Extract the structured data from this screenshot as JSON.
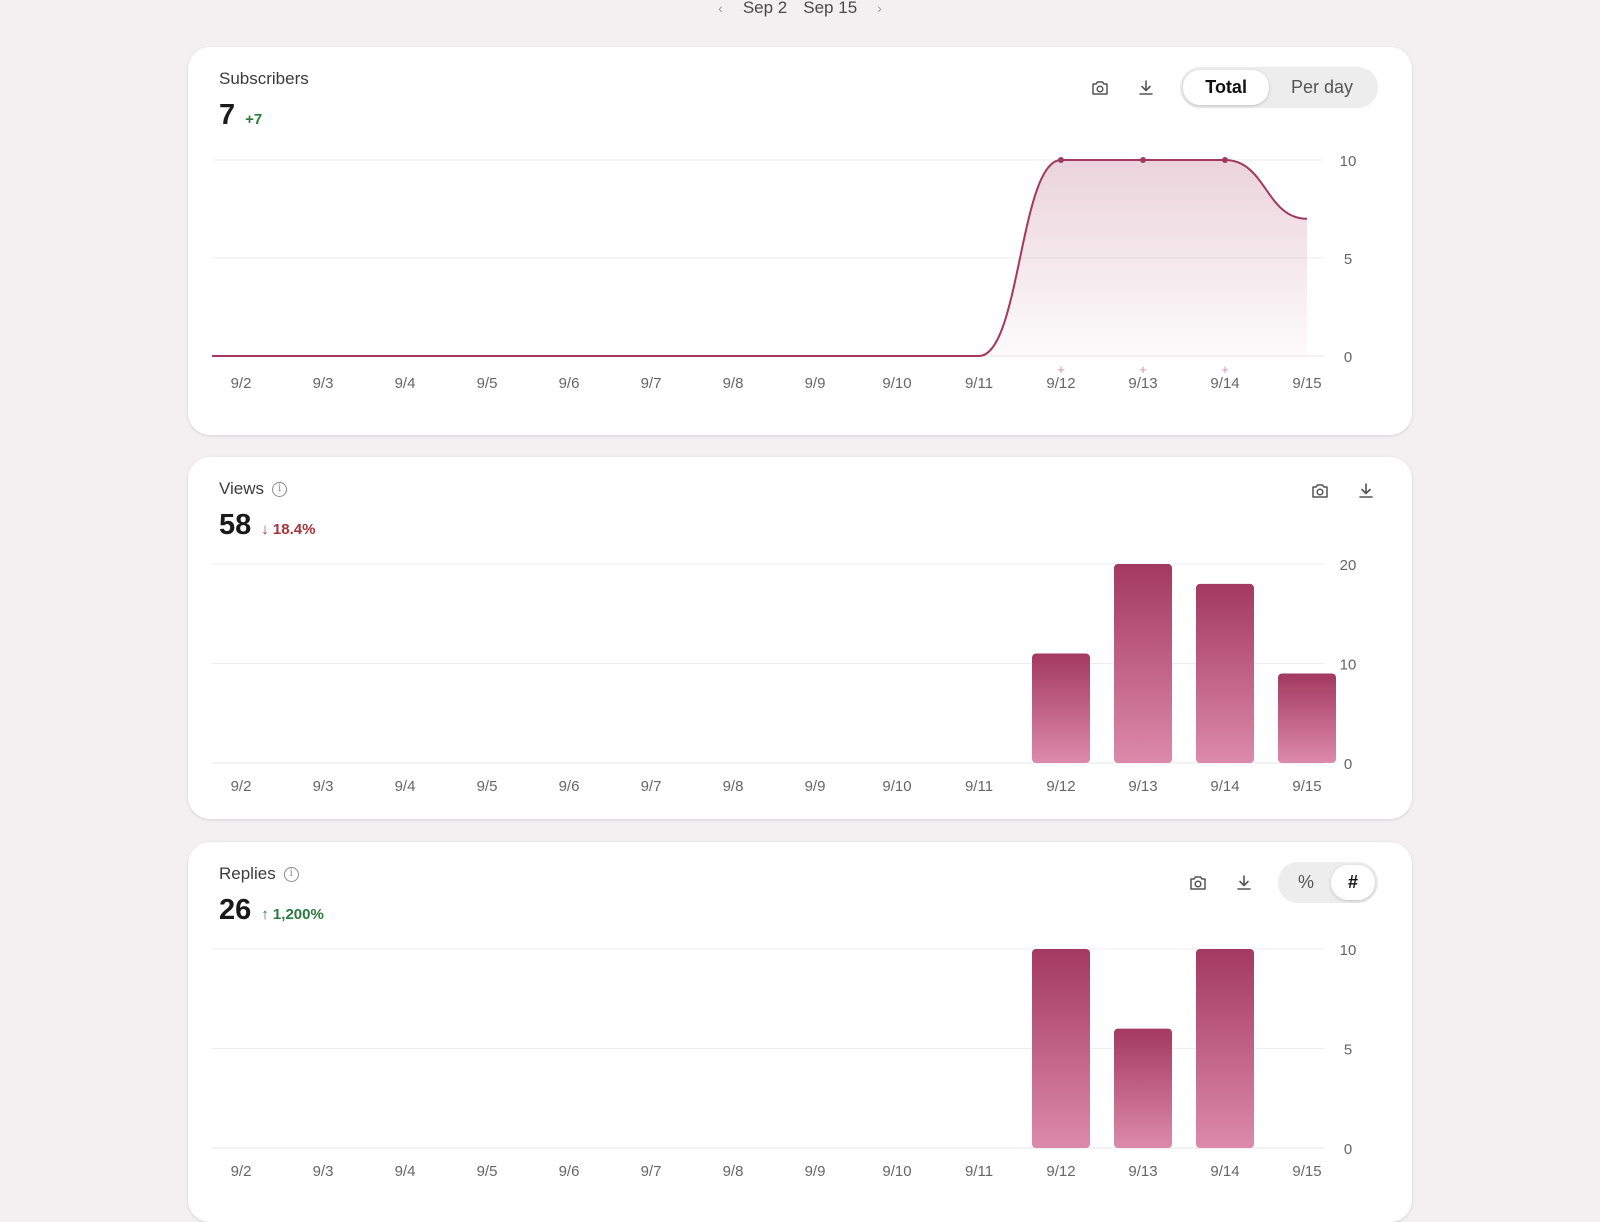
{
  "date_range": {
    "prev_label": "‹",
    "start": "Sep 2",
    "end": "Sep 15",
    "next_label": "›"
  },
  "theme": {
    "accent": "#a3395f",
    "accent_light": "#dc8aab",
    "delta_up": "#2b7a3d",
    "delta_down": "#a8323c"
  },
  "subscribers": {
    "title": "Subscribers",
    "value": "7",
    "delta": "+7",
    "toggle": [
      "Total",
      "Per day"
    ],
    "active_toggle": "Total",
    "icons": [
      "camera-icon",
      "download-icon"
    ]
  },
  "views": {
    "title": "Views",
    "value": "58",
    "delta": "↓ 18.4%",
    "icons": [
      "info-icon",
      "camera-icon",
      "download-icon"
    ]
  },
  "replies": {
    "title": "Replies",
    "value": "26",
    "delta": "↑ 1,200%",
    "toggle": [
      "%",
      "#"
    ],
    "active_toggle": "#",
    "icons": [
      "info-icon",
      "camera-icon",
      "download-icon"
    ]
  },
  "chart_data": [
    {
      "type": "area",
      "categories": [
        "9/2",
        "9/3",
        "9/4",
        "9/5",
        "9/6",
        "9/7",
        "9/8",
        "9/9",
        "9/10",
        "9/11",
        "9/12",
        "9/13",
        "9/14",
        "9/15"
      ],
      "values": [
        0,
        0,
        0,
        0,
        0,
        0,
        0,
        0,
        0,
        0,
        10,
        10,
        10,
        7
      ],
      "markers": [
        "9/12",
        "9/13",
        "9/14"
      ],
      "yticks": [
        0,
        5,
        10
      ],
      "ylim": [
        0,
        10
      ],
      "grid": true,
      "title": ""
    },
    {
      "type": "bar",
      "categories": [
        "9/2",
        "9/3",
        "9/4",
        "9/5",
        "9/6",
        "9/7",
        "9/8",
        "9/9",
        "9/10",
        "9/11",
        "9/12",
        "9/13",
        "9/14",
        "9/15"
      ],
      "values": [
        0,
        0,
        0,
        0,
        0,
        0,
        0,
        0,
        0,
        0,
        11,
        20,
        18,
        9
      ],
      "yticks": [
        0,
        10,
        20
      ],
      "ylim": [
        0,
        20
      ],
      "grid": true,
      "title": ""
    },
    {
      "type": "bar",
      "categories": [
        "9/2",
        "9/3",
        "9/4",
        "9/5",
        "9/6",
        "9/7",
        "9/8",
        "9/9",
        "9/10",
        "9/11",
        "9/12",
        "9/13",
        "9/14",
        "9/15"
      ],
      "values": [
        0,
        0,
        0,
        0,
        0,
        0,
        0,
        0,
        0,
        0,
        10,
        6,
        10,
        0
      ],
      "yticks": [
        0,
        5,
        10
      ],
      "ylim": [
        0,
        10
      ],
      "grid": true,
      "title": ""
    }
  ]
}
